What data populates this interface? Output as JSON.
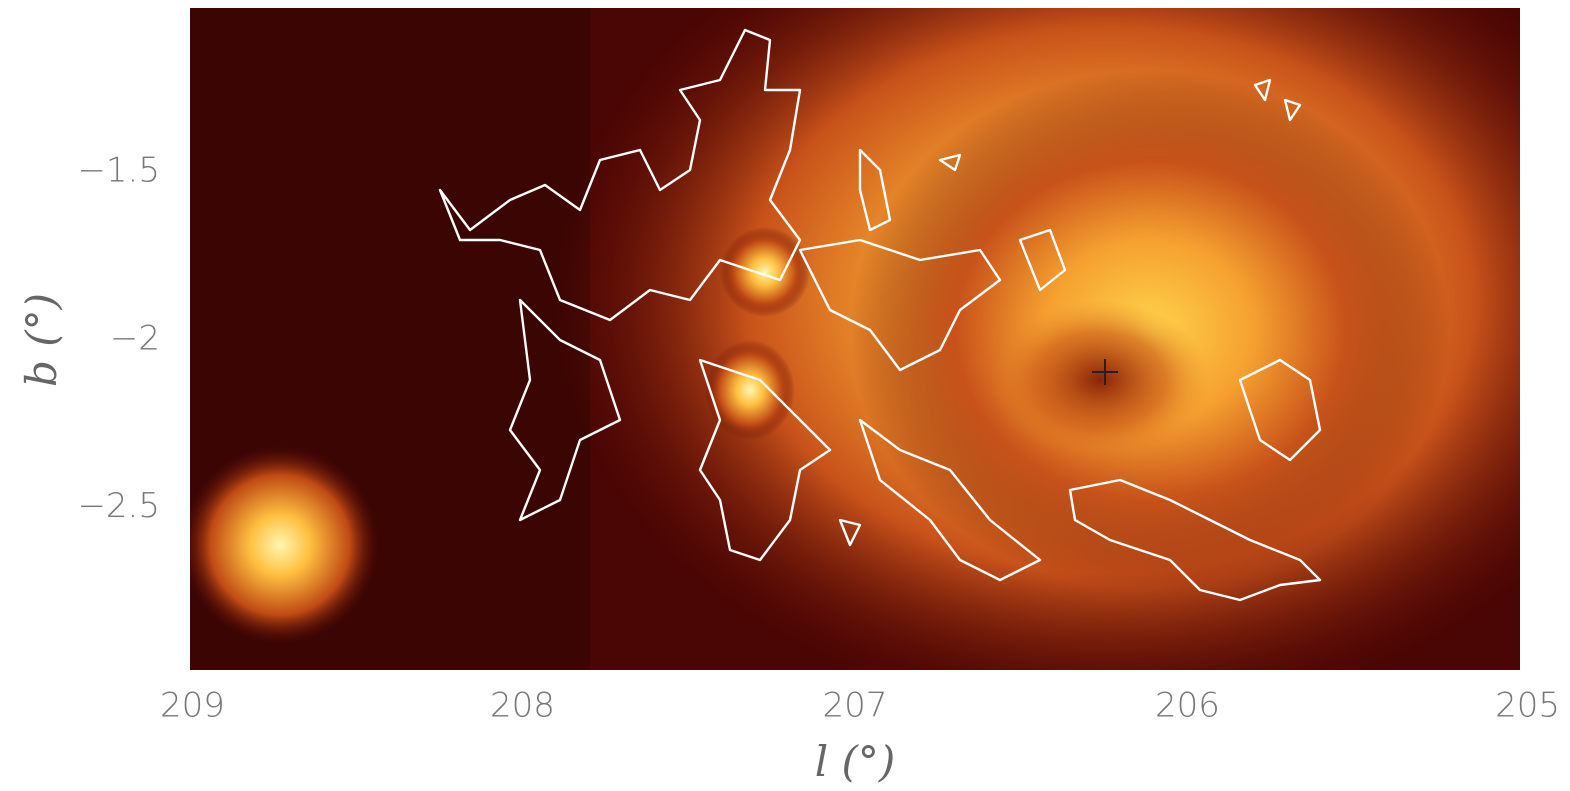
{
  "chart_data": {
    "type": "image",
    "x_label": "l (°)",
    "y_label": "b (°)",
    "xlim": [
      209,
      205
    ],
    "ylim": [
      -2.985,
      -1.01
    ],
    "xticks": [
      209,
      208,
      207,
      206,
      205
    ],
    "yticks": [
      {
        "value": -1.5,
        "label": "−1.5"
      },
      {
        "value": -2,
        "label": "−2"
      },
      {
        "value": -2.5,
        "label": "−2.5"
      }
    ]
  }
}
